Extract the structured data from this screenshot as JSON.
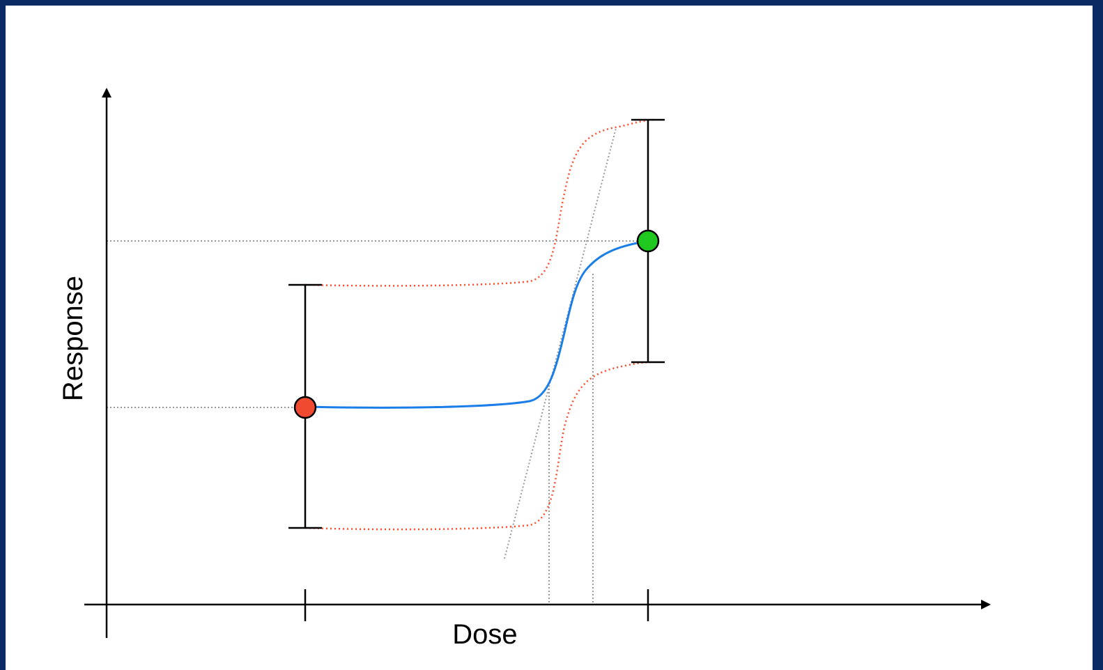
{
  "diagram": {
    "x_axis_label": "Dose",
    "y_axis_label": "Response",
    "colors": {
      "background_frame": "#0a2a66",
      "fit_curve": "#1a7de8",
      "confidence_band": "#ff4a2a",
      "guide_lines": "#999999",
      "low_dose_point": "#f04a30",
      "high_dose_point": "#1ec81e",
      "axes": "#000000"
    },
    "elements": [
      "low-dose-point",
      "high-dose-point",
      "error-bars",
      "fitted-dose-response-curve",
      "upper-confidence-bound",
      "lower-confidence-bound",
      "tangent-line",
      "horizontal-guide-lines",
      "vertical-guide-lines"
    ]
  }
}
